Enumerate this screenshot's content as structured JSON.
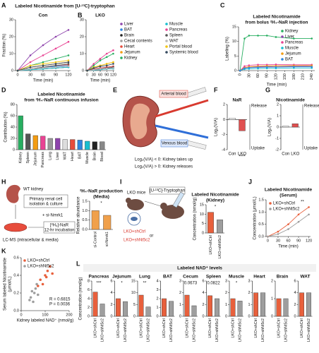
{
  "headers": {
    "ab_title": "Labeled Nicotinamide from [U-¹³C]-tryptophan",
    "l_title": "Labeled NAD⁺ levels"
  },
  "panel_letters": [
    "A",
    "B",
    "C",
    "D",
    "E",
    "F",
    "G",
    "H",
    "I",
    "J",
    "K",
    "L"
  ],
  "diagrams": {
    "e": {
      "arterial": "Arterial blood",
      "venous": "Venous blood",
      "rule_uptake": "Log₂(V/A) < 0: Kidney takes up",
      "rule_release": "Log₂(V/A) > 0: Kidney releases"
    },
    "h": {
      "kidney": "WT kidney",
      "box_1": "Primary renal cell",
      "box_2": "isolation & culture",
      "sirna": "+ si-Nmrk1",
      "tracer_1": "[²H₄]-NaR",
      "tracer_2": "12-hr incubation",
      "readout": "LC-MS (intracellular & media)"
    },
    "i": {
      "mice": "LKO mice",
      "tracer": "[U-¹³C]-Tryptophan",
      "group_1": "LKO+shCtrl",
      "or": "or",
      "group_2": "LKO+shNt5c2"
    }
  },
  "chart_data": [
    {
      "type": "line",
      "title": [
        "Con"
      ],
      "xlabel": "Time (min)",
      "ylabel": [
        "Fraction (%)"
      ],
      "x": [
        0,
        30,
        60,
        90,
        120
      ],
      "xlim": [
        -5,
        125
      ],
      "xticks": [
        0,
        30,
        60,
        90,
        120
      ],
      "ylim": [
        0,
        30
      ],
      "yticks": [
        0,
        10,
        20,
        30
      ],
      "series": [
        {
          "color": "#8e44ad",
          "values": [
            0,
            9,
            15,
            20,
            24
          ]
        },
        {
          "color": "#2e86de",
          "values": [
            0,
            1,
            2,
            2.5,
            3
          ]
        },
        {
          "color": "#222222",
          "values": [
            0,
            0.5,
            1,
            1.5,
            2
          ]
        },
        {
          "color": "#a0a0a0",
          "values": [
            0,
            0.5,
            1,
            1.5,
            2
          ]
        },
        {
          "color": "#e74c3c",
          "values": [
            0,
            1,
            2,
            3,
            3.5
          ]
        },
        {
          "color": "#f39c12",
          "values": [
            0,
            2,
            3,
            4,
            5
          ]
        },
        {
          "color": "#27ae60",
          "values": [
            0,
            3,
            5,
            7,
            9
          ]
        },
        {
          "color": "#17becf",
          "values": [
            0,
            0.5,
            1,
            1.5,
            2
          ]
        },
        {
          "color": "#e84393",
          "values": [
            0,
            5,
            9,
            13,
            17
          ]
        },
        {
          "color": "#555555",
          "values": [
            0,
            1,
            2,
            3,
            4
          ]
        },
        {
          "color": "#bbbbbb",
          "values": [
            0,
            1,
            1.5,
            2,
            2.5
          ]
        },
        {
          "color": "#f1c40f",
          "values": [
            0,
            3,
            4,
            5,
            6
          ]
        },
        {
          "color": "#34495e",
          "values": [
            0,
            2,
            3,
            4,
            5
          ]
        }
      ]
    },
    {
      "type": "line",
      "title": [
        "LKO"
      ],
      "xlabel": "Time (min)",
      "x": [
        0,
        30,
        60,
        90,
        120
      ],
      "xlim": [
        -5,
        125
      ],
      "xticks": [
        0,
        30,
        60,
        90,
        120
      ],
      "ylim": [
        0,
        30
      ],
      "yticks": [
        0,
        10,
        20,
        30
      ],
      "legend": "right",
      "series": [
        {
          "name": "Liver",
          "color": "#8e44ad",
          "values": [
            0,
            1,
            1.5,
            2,
            2.5
          ]
        },
        {
          "name": "BAT",
          "color": "#2e86de",
          "values": [
            0,
            0.5,
            1,
            1.5,
            2
          ]
        },
        {
          "name": "Brain",
          "color": "#222222",
          "values": [
            0,
            0.3,
            0.6,
            1,
            1.2
          ]
        },
        {
          "name": "Cecal contents",
          "color": "#a0a0a0",
          "values": [
            0,
            0.3,
            0.6,
            1,
            1.2
          ]
        },
        {
          "name": "Heart",
          "color": "#e74c3c",
          "values": [
            0,
            1,
            1.5,
            2,
            2.5
          ]
        },
        {
          "name": "Jejunum",
          "color": "#f39c12",
          "values": [
            0,
            2,
            3,
            4,
            5
          ]
        },
        {
          "name": "Kidney",
          "color": "#27ae60",
          "values": [
            0,
            3,
            6,
            8,
            10
          ]
        },
        {
          "name": "Muscle",
          "color": "#17becf",
          "values": [
            0,
            0.3,
            0.6,
            1,
            1.2
          ]
        },
        {
          "name": "Pancreas",
          "color": "#e84393",
          "values": [
            0,
            4,
            7,
            10,
            12
          ]
        },
        {
          "name": "Spleen",
          "color": "#555555",
          "values": [
            0,
            0.5,
            1,
            1.5,
            2
          ]
        },
        {
          "name": "WAT",
          "color": "#bbbbbb",
          "values": [
            0,
            0.5,
            1,
            1.2,
            1.5
          ]
        },
        {
          "name": "Portal blood",
          "color": "#f1c40f",
          "values": [
            0,
            2,
            3,
            4,
            5
          ]
        },
        {
          "name": "Systemic blood",
          "color": "#34495e",
          "values": [
            0,
            1.5,
            2.5,
            3,
            4
          ]
        }
      ]
    },
    {
      "type": "line",
      "title": [
        "Labeled Nicotinamide",
        "from bolus ²H₄-NaR injection"
      ],
      "xlabel": "Time (min)",
      "ylabel": [
        "Labeling (%)"
      ],
      "x": [
        0,
        15,
        30,
        60,
        90,
        120,
        180,
        240
      ],
      "xlim": [
        -5,
        250
      ],
      "xticks": [
        0,
        30,
        60,
        90,
        120,
        150,
        180,
        210,
        240
      ],
      "ylim": [
        0,
        15
      ],
      "yticks": [
        0,
        5,
        10,
        15
      ],
      "legend": "upper right",
      "series": [
        {
          "name": "Kidney",
          "color": "#27ae60",
          "values": [
            0,
            11,
            12,
            12,
            12,
            11.5,
            11,
            11
          ]
        },
        {
          "name": "Liver",
          "color": "#8e44ad",
          "values": [
            0,
            1,
            1.2,
            1.3,
            1.4,
            1.5,
            1.5,
            1.6
          ]
        },
        {
          "name": "Pancreas",
          "color": "#e84393",
          "values": [
            0,
            1.5,
            1.8,
            2,
            2,
            2.1,
            2,
            2
          ]
        },
        {
          "name": "Muscle",
          "color": "#17becf",
          "values": [
            0,
            0.5,
            0.6,
            0.7,
            0.8,
            0.8,
            0.9,
            0.9
          ]
        },
        {
          "name": "Jejunum",
          "color": "#f39c12",
          "values": [
            0,
            1,
            1.3,
            1.5,
            1.6,
            1.6,
            1.7,
            1.7
          ]
        },
        {
          "name": "BAT",
          "color": "#2e86de",
          "values": [
            0,
            0.8,
            1,
            1.1,
            1.2,
            1.2,
            1.3,
            1.3
          ]
        }
      ]
    },
    {
      "type": "bar",
      "title": [
        "Labeled Nicotinamide",
        "from ²H₄-NaR continuous infusion"
      ],
      "ylabel": [
        "Contribution (%)"
      ],
      "categories": [
        "Kidney",
        "Spleen",
        "Jejunum",
        "Pancreas",
        "Lung",
        "Liver",
        "WAT",
        "Heart",
        "BAT",
        "Muscle",
        "Brain",
        "Blood"
      ],
      "values": [
        60,
        28,
        25,
        24,
        20,
        20,
        18,
        18,
        17,
        15,
        14,
        14
      ],
      "colors": [
        "#27ae60",
        "#555555",
        "#f39c12",
        "#e84393",
        "#999999",
        "#8e44ad",
        "#dddddd",
        "#e74c3c",
        "#2e86de",
        "#17becf",
        "#222222",
        "#888888"
      ],
      "ylim": [
        0,
        80
      ],
      "yticks": [
        0,
        20,
        40,
        60,
        80
      ]
    },
    {
      "type": "bar",
      "title": [
        "NaR"
      ],
      "ylabel": [
        "Log₂(V/A)"
      ],
      "categories": [
        "Con",
        "LKO"
      ],
      "values": [
        0.2,
        -1.5
      ],
      "colors": [
        "#ffffff",
        "#e05050"
      ],
      "ylim": [
        -4,
        2
      ],
      "yticks": [
        -4,
        -2,
        0,
        2
      ],
      "annotation": "****",
      "side_labels": [
        "Release",
        "Uptake"
      ]
    },
    {
      "type": "bar",
      "title": [
        "Nicotinamide"
      ],
      "ylabel": [
        "Log₂(V/A)"
      ],
      "categories": [
        "Con",
        "LKO"
      ],
      "values": [
        0.1,
        0.3
      ],
      "colors": [
        "#ffffff",
        "#e05050"
      ],
      "ylim": [
        -2,
        2
      ],
      "yticks": [
        -2,
        -1,
        0,
        1,
        2
      ],
      "side_labels": [
        "Release",
        "Uptake"
      ]
    },
    {
      "type": "bar",
      "title": [
        "²H₄-NaR production",
        "(Media)"
      ],
      "ylabel": [
        "Relative abundance"
      ],
      "categories": [
        "si-Control",
        "si-Nmrk1"
      ],
      "values": [
        1.0,
        0.75
      ],
      "colors": [
        "#f0a04b",
        "#f0a04b"
      ],
      "ylim": [
        0,
        1.5
      ],
      "yticks": [
        {
          "value": 0,
          "label": "0.0"
        },
        {
          "value": 0.5,
          "label": "0.5"
        },
        {
          "value": 1,
          "label": "1.0"
        },
        {
          "value": 1.5,
          "label": "1.5"
        }
      ],
      "annotation": "*"
    },
    {
      "type": "bar",
      "title": [
        "Labeled Nicotinamide",
        "(Kidney)"
      ],
      "ylabel": [
        "Concentration (nmol/g)"
      ],
      "categories": [
        "LKO+shCtrl",
        "LKO+shNt5c2"
      ],
      "values": [
        11,
        7
      ],
      "colors": [
        "#e8603c",
        "#9e9e9e"
      ],
      "ylim": [
        0,
        15
      ],
      "yticks": [
        0,
        5,
        10,
        15
      ],
      "annotation": "*"
    },
    {
      "type": "line",
      "title": [
        "Labeled Nicotinamide",
        "(Serum)"
      ],
      "xlabel": "Time (min)",
      "ylabel": [
        "Concentration (μmol/L)"
      ],
      "x": [
        0,
        30,
        60,
        90,
        120
      ],
      "xlim": [
        -5,
        125
      ],
      "xticks": [
        0,
        30,
        60,
        90,
        120
      ],
      "ylim": [
        0,
        1.5
      ],
      "yticks": [
        {
          "value": 0,
          "label": "0.0"
        },
        {
          "value": 0.5,
          "label": "0.5"
        },
        {
          "value": 1,
          "label": "1.0"
        },
        {
          "value": 1.5,
          "label": "1.5"
        }
      ],
      "legend": "upper left",
      "annotation": "**",
      "series": [
        {
          "name": "LKO+shCtrl",
          "color": "#e8603c",
          "values": [
            0,
            0.2,
            0.5,
            0.9,
            1.2
          ]
        },
        {
          "name": "LKO+shNt5c2",
          "color": "#9e9e9e",
          "values": [
            0,
            0.1,
            0.3,
            0.6,
            0.9
          ]
        }
      ]
    },
    {
      "type": "scatter",
      "xlabel": "Kidney labeled NAD⁺ (nmol/g)",
      "ylabel": [
        "Serum labeled Nicotinamide",
        "(μmol/L)"
      ],
      "xlim": [
        0,
        200
      ],
      "xticks": [
        0,
        100,
        200
      ],
      "ylim": [
        0,
        0.6
      ],
      "yticks": [
        {
          "value": 0,
          "label": "0.0"
        },
        {
          "value": 0.2,
          "label": "0.2"
        },
        {
          "value": 0.4,
          "label": "0.4"
        },
        {
          "value": 0.6,
          "label": "0.6"
        }
      ],
      "legend": "upper left",
      "annotations": [
        "R = 0.6815",
        "P = 0.0036"
      ],
      "series": [
        {
          "name": "LKO+shCtrl",
          "color": "#e8603c",
          "x": [
            80,
            100,
            110,
            120,
            90,
            130,
            70,
            105
          ],
          "y": [
            0.35,
            0.4,
            0.45,
            0.5,
            0.3,
            0.42,
            0.28,
            0.38
          ]
        },
        {
          "name": "LKO+shNt5c2",
          "color": "#9e9e9e",
          "x": [
            40,
            55,
            60,
            45,
            70,
            35,
            65,
            50
          ],
          "y": [
            0.15,
            0.2,
            0.25,
            0.22,
            0.18,
            0.12,
            0.3,
            0.1
          ]
        }
      ]
    },
    {
      "type": "bar",
      "title": [
        "Pancreas"
      ],
      "ylabel": [
        "Concentration (nmol/g)"
      ],
      "categories": [
        "LKO+shCtrl",
        "LKO+shNt5c2"
      ],
      "values": [
        5.5,
        2.8
      ],
      "colors": [
        "#e8603c",
        "#9e9e9e"
      ],
      "ylim": [
        0,
        8
      ],
      "yticks": [
        0,
        2,
        4,
        6,
        8
      ],
      "annotation": "***"
    },
    {
      "type": "bar",
      "title": [
        "Jejunum"
      ],
      "categories": [
        "LKO+shCtrl",
        "LKO+shNt5c2"
      ],
      "values": [
        3,
        2.5
      ],
      "colors": [
        "#e8603c",
        "#9e9e9e"
      ],
      "ylim": [
        0,
        6
      ],
      "yticks": [
        0,
        2,
        4,
        6
      ],
      "annotation": "*"
    },
    {
      "type": "bar",
      "title": [
        "Lung"
      ],
      "categories": [
        "LKO+shCtrl",
        "LKO+shNt5c2"
      ],
      "values": [
        9,
        4
      ],
      "colors": [
        "#e8603c",
        "#9e9e9e"
      ],
      "ylim": [
        0,
        15
      ],
      "yticks": [
        0,
        5,
        10,
        15
      ],
      "annotation": "**"
    },
    {
      "type": "bar",
      "title": [
        "BAT"
      ],
      "categories": [
        "LKO+shCtrl",
        "LKO+shNt5c2"
      ],
      "values": [
        2,
        1.7
      ],
      "colors": [
        "#e8603c",
        "#9e9e9e"
      ],
      "ylim": [
        0,
        4
      ],
      "yticks": [
        0,
        1,
        2,
        3,
        4
      ]
    },
    {
      "type": "bar",
      "title": [
        "Cecum"
      ],
      "categories": [
        "LKO+shCtrl",
        "LKO+shNt5c2"
      ],
      "values": [
        1.8,
        0.9
      ],
      "colors": [
        "#e8603c",
        "#9e9e9e"
      ],
      "ylim": [
        0,
        3
      ],
      "yticks": [
        0,
        1,
        2,
        3
      ],
      "annotation": "0.0673"
    },
    {
      "type": "bar",
      "title": [
        "Spleen"
      ],
      "categories": [
        "LKO+shCtrl",
        "LKO+shNt5c2"
      ],
      "values": [
        3.5,
        3
      ],
      "colors": [
        "#e8603c",
        "#9e9e9e"
      ],
      "ylim": [
        0,
        6
      ],
      "yticks": [
        0,
        2,
        4,
        6
      ],
      "annotation": "0.0822"
    },
    {
      "type": "bar",
      "title": [
        "Muscle"
      ],
      "categories": [
        "LKO+shCtrl",
        "LKO+shNt5c2"
      ],
      "values": [
        1.5,
        1.3
      ],
      "colors": [
        "#e8603c",
        "#9e9e9e"
      ],
      "ylim": [
        0,
        3
      ],
      "yticks": [
        0,
        1,
        2,
        3
      ],
      "annotation": "*"
    },
    {
      "type": "bar",
      "title": [
        "Heart"
      ],
      "categories": [
        "LKO+shCtrl",
        "LKO+shNt5c2"
      ],
      "values": [
        2,
        2
      ],
      "colors": [
        "#e8603c",
        "#9e9e9e"
      ],
      "ylim": [
        0,
        3
      ],
      "yticks": [
        0,
        1,
        2,
        3
      ]
    },
    {
      "type": "bar",
      "title": [
        "Brain"
      ],
      "categories": [
        "LKO+shCtrl",
        "LKO+shNt5c2"
      ],
      "values": [
        1,
        1
      ],
      "colors": [
        "#e8603c",
        "#9e9e9e"
      ],
      "ylim": [
        0,
        2
      ],
      "yticks": [
        0,
        1,
        2
      ]
    },
    {
      "type": "bar",
      "title": [
        "WAT"
      ],
      "categories": [
        "LKO+shCtrl",
        "LKO+shNt5c2"
      ],
      "values": [
        4,
        4
      ],
      "colors": [
        "#e8603c",
        "#9e9e9e"
      ],
      "ylim": [
        0,
        6
      ],
      "yticks": [
        0,
        2,
        4,
        6
      ]
    }
  ]
}
